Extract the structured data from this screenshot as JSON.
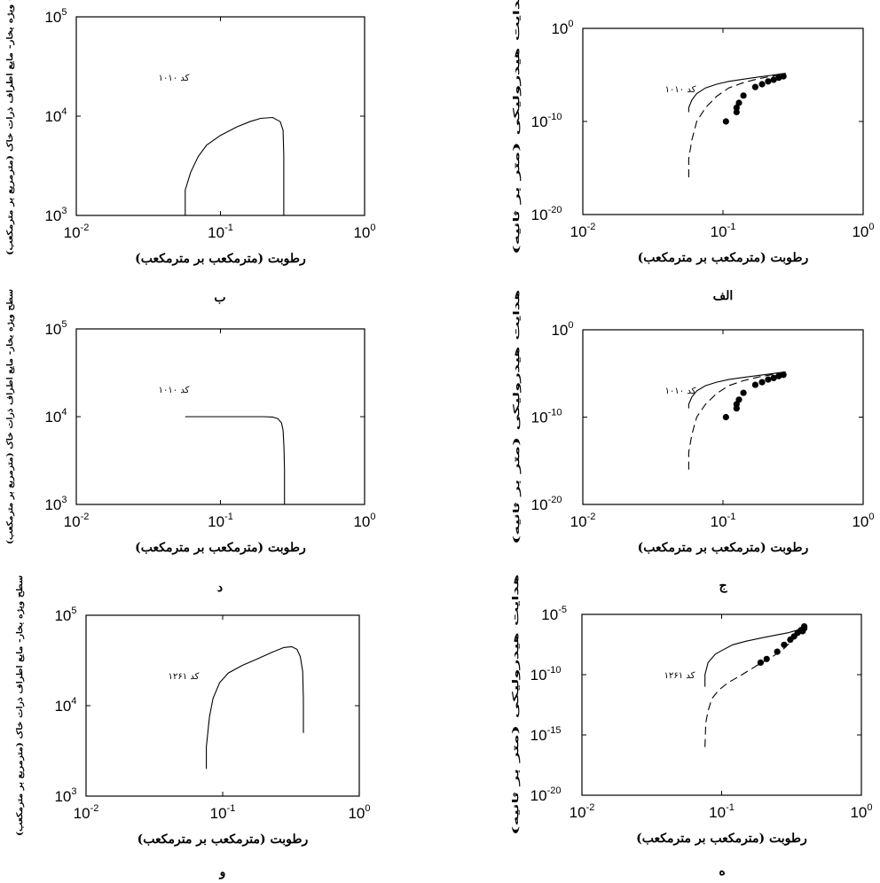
{
  "chart_data": [
    {
      "id": "b",
      "type": "line",
      "caption": "ب",
      "xlabel": "رطوبت (مترمکعب بر مترمکعب)",
      "ylabel": "سطح ویژه بخار- مایع اطراف ذرات خاک (مترمربع بر مترمکعب)",
      "annotation": "کد ۱۰۱۰",
      "xscale": "log",
      "yscale": "log",
      "xlim": [
        0.01,
        1
      ],
      "ylim": [
        1000,
        100000
      ],
      "xticks": [
        {
          "base": "10",
          "exp": "-2"
        },
        {
          "base": "10",
          "exp": "-1"
        },
        {
          "base": "10",
          "exp": "0"
        }
      ],
      "yticks": [
        {
          "base": "10",
          "exp": "3"
        },
        {
          "base": "10",
          "exp": "4"
        },
        {
          "base": "10",
          "exp": "5"
        }
      ],
      "series": [
        {
          "style": "solid",
          "x": [
            0.057,
            0.057,
            0.062,
            0.07,
            0.08,
            0.1,
            0.13,
            0.16,
            0.19,
            0.23,
            0.26,
            0.272,
            0.275,
            0.275
          ],
          "y": [
            1000,
            1800,
            2700,
            3900,
            5100,
            6400,
            7800,
            8800,
            9500,
            9700,
            8800,
            7200,
            4000,
            1000
          ]
        }
      ]
    },
    {
      "id": "alef",
      "type": "line",
      "caption": "الف",
      "xlabel": "رطوبت (مترمکعب بر مترمکعب)",
      "ylabel": "هدایت هیدرولیکی (متر بر ثانیه)",
      "annotation": "کد ۱۰۱۰",
      "xscale": "log",
      "yscale": "log",
      "xlim": [
        0.01,
        1
      ],
      "ylim": [
        1e-20,
        1
      ],
      "xticks": [
        {
          "base": "10",
          "exp": "-2"
        },
        {
          "base": "10",
          "exp": "-1"
        },
        {
          "base": "10",
          "exp": "0"
        }
      ],
      "yticks": [
        {
          "base": "10",
          "exp": "-20"
        },
        {
          "base": "10",
          "exp": "-10"
        },
        {
          "base": "10",
          "exp": "0"
        }
      ],
      "series": [
        {
          "style": "solid",
          "x": [
            0.057,
            0.057,
            0.06,
            0.065,
            0.075,
            0.09,
            0.11,
            0.14,
            0.18,
            0.22,
            0.26,
            0.28
          ],
          "y": [
            1e-09,
            3e-09,
            2e-08,
            1e-07,
            4e-07,
            1e-06,
            2e-06,
            3.5e-06,
            6e-06,
            9e-06,
            1.3e-05,
            1.5e-05
          ]
        },
        {
          "style": "dashed",
          "x": [
            0.057,
            0.057,
            0.06,
            0.065,
            0.075,
            0.09,
            0.11,
            0.14,
            0.18,
            0.22,
            0.26,
            0.28
          ],
          "y": [
            1e-16,
            1e-14,
            1e-12,
            1e-10,
            3e-09,
            5e-08,
            4e-07,
            1.5e-06,
            4e-06,
            7e-06,
            1e-05,
            1.2e-05
          ]
        },
        {
          "style": "markers",
          "x": [
            0.105,
            0.125,
            0.125,
            0.13,
            0.14,
            0.17,
            0.19,
            0.21,
            0.23,
            0.25,
            0.27
          ],
          "y": [
            1e-10,
            1e-09,
            3e-09,
            1e-08,
            6e-08,
            5e-07,
            1e-06,
            2e-06,
            3e-06,
            5e-06,
            7e-06
          ]
        }
      ]
    },
    {
      "id": "d",
      "type": "line",
      "caption": "د",
      "xlabel": "رطوبت (مترمکعب بر مترمکعب)",
      "ylabel": "سطح ویژه بخار- مایع اطراف ذرات خاک (مترمربع بر مترمکعب)",
      "annotation": "کد ۱۰۱۰",
      "xscale": "log",
      "yscale": "log",
      "xlim": [
        0.01,
        1
      ],
      "ylim": [
        1000,
        100000
      ],
      "xticks": [
        {
          "base": "10",
          "exp": "-2"
        },
        {
          "base": "10",
          "exp": "-1"
        },
        {
          "base": "10",
          "exp": "0"
        }
      ],
      "yticks": [
        {
          "base": "10",
          "exp": "3"
        },
        {
          "base": "10",
          "exp": "4"
        },
        {
          "base": "10",
          "exp": "5"
        }
      ],
      "series": [
        {
          "style": "solid",
          "x": [
            0.057,
            0.1,
            0.15,
            0.2,
            0.23,
            0.25,
            0.265,
            0.272,
            0.276,
            0.278,
            0.278
          ],
          "y": [
            10000,
            10000,
            10000,
            10000,
            9900,
            9500,
            8500,
            7000,
            4500,
            2500,
            1000
          ]
        }
      ]
    },
    {
      "id": "jim",
      "type": "line",
      "caption": "ج",
      "xlabel": "رطوبت (مترمکعب بر مترمکعب)",
      "ylabel": "هدایت هیدرولیکی (متر بر ثانیه)",
      "annotation": "کد ۱۰۱۰",
      "xscale": "log",
      "yscale": "log",
      "xlim": [
        0.01,
        1
      ],
      "ylim": [
        1e-20,
        1
      ],
      "xticks": [
        {
          "base": "10",
          "exp": "-2"
        },
        {
          "base": "10",
          "exp": "-1"
        },
        {
          "base": "10",
          "exp": "0"
        }
      ],
      "yticks": [
        {
          "base": "10",
          "exp": "-20"
        },
        {
          "base": "10",
          "exp": "-10"
        },
        {
          "base": "10",
          "exp": "0"
        }
      ],
      "series": [
        {
          "style": "solid",
          "x": [
            0.057,
            0.057,
            0.06,
            0.065,
            0.075,
            0.09,
            0.11,
            0.14,
            0.18,
            0.22,
            0.26,
            0.28
          ],
          "y": [
            1e-09,
            3e-09,
            2e-08,
            1e-07,
            4e-07,
            1e-06,
            2e-06,
            3.5e-06,
            6e-06,
            9e-06,
            1.3e-05,
            1.5e-05
          ]
        },
        {
          "style": "dashed",
          "x": [
            0.057,
            0.057,
            0.06,
            0.065,
            0.075,
            0.09,
            0.11,
            0.14,
            0.18,
            0.22,
            0.26,
            0.28
          ],
          "y": [
            1e-16,
            1e-14,
            1e-12,
            1e-10,
            3e-09,
            5e-08,
            4e-07,
            1.5e-06,
            4e-06,
            7e-06,
            1e-05,
            1.2e-05
          ]
        },
        {
          "style": "markers",
          "x": [
            0.105,
            0.125,
            0.125,
            0.13,
            0.14,
            0.17,
            0.19,
            0.21,
            0.23,
            0.25,
            0.27
          ],
          "y": [
            1e-10,
            1e-09,
            3e-09,
            1e-08,
            6e-08,
            5e-07,
            1e-06,
            2e-06,
            3e-06,
            5e-06,
            7e-06
          ]
        }
      ]
    },
    {
      "id": "vav",
      "type": "line",
      "caption": "و",
      "xlabel": "رطوبت (مترمکعب بر مترمکعب)",
      "ylabel": "سطح ویژه بخار- مایع اطراف ذرات خاک (مترمربع بر مترمکعب)",
      "annotation": "کد ۱۲۶۱",
      "xscale": "log",
      "yscale": "log",
      "xlim": [
        0.01,
        1
      ],
      "ylim": [
        1000,
        100000
      ],
      "xticks": [
        {
          "base": "10",
          "exp": "-2"
        },
        {
          "base": "10",
          "exp": "-1"
        },
        {
          "base": "10",
          "exp": "0"
        }
      ],
      "yticks": [
        {
          "base": "10",
          "exp": "3"
        },
        {
          "base": "10",
          "exp": "4"
        },
        {
          "base": "10",
          "exp": "5"
        }
      ],
      "series": [
        {
          "style": "solid",
          "x": [
            0.076,
            0.076,
            0.08,
            0.085,
            0.095,
            0.11,
            0.14,
            0.18,
            0.23,
            0.28,
            0.32,
            0.35,
            0.37,
            0.385,
            0.39,
            0.39
          ],
          "y": [
            2000,
            3500,
            7500,
            12000,
            18000,
            23000,
            28000,
            33000,
            39000,
            44000,
            45000,
            42000,
            35000,
            24000,
            12000,
            5000
          ]
        }
      ]
    },
    {
      "id": "he",
      "type": "line",
      "caption": "ه",
      "xlabel": "رطوبت (مترمکعب بر مترمکعب)",
      "ylabel": "هدایت هیدرولیکی (متر بر ثانیه)",
      "annotation": "کد ۱۲۶۱",
      "xscale": "log",
      "yscale": "log",
      "xlim": [
        0.01,
        1
      ],
      "ylim": [
        1e-20,
        1e-05
      ],
      "xticks": [
        {
          "base": "10",
          "exp": "-2"
        },
        {
          "base": "10",
          "exp": "-1"
        },
        {
          "base": "10",
          "exp": "0"
        }
      ],
      "yticks": [
        {
          "base": "10",
          "exp": "-20"
        },
        {
          "base": "10",
          "exp": "-15"
        },
        {
          "base": "10",
          "exp": "-10"
        },
        {
          "base": "10",
          "exp": "-5"
        }
      ],
      "series": [
        {
          "style": "solid",
          "x": [
            0.076,
            0.076,
            0.08,
            0.09,
            0.1,
            0.12,
            0.15,
            0.2,
            0.25,
            0.3,
            0.35,
            0.39
          ],
          "y": [
            1e-11,
            1e-10,
            1e-09,
            5e-09,
            1e-08,
            3e-08,
            6e-08,
            1.2e-07,
            2e-07,
            3e-07,
            5e-07,
            8e-07
          ]
        },
        {
          "style": "dashed",
          "x": [
            0.076,
            0.077,
            0.08,
            0.085,
            0.095,
            0.11,
            0.14,
            0.18,
            0.23,
            0.28,
            0.33,
            0.39
          ],
          "y": [
            1e-16,
            1e-14,
            1e-13,
            1e-12,
            5e-12,
            2e-11,
            1e-10,
            6e-10,
            3e-09,
            1.5e-08,
            1e-07,
            6e-07
          ]
        },
        {
          "style": "markers",
          "x": [
            0.19,
            0.21,
            0.25,
            0.28,
            0.31,
            0.33,
            0.35,
            0.37,
            0.39,
            0.38,
            0.39
          ],
          "y": [
            1e-09,
            2e-09,
            8e-09,
            3e-08,
            8e-08,
            1.5e-07,
            3e-07,
            5e-07,
            7e-07,
            4e-07,
            1e-06
          ]
        }
      ]
    }
  ]
}
